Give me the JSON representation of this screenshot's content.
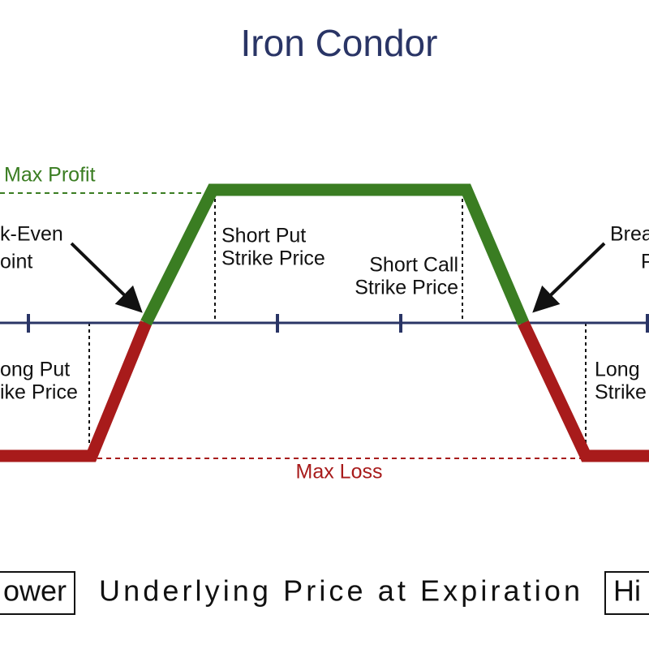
{
  "title": "Iron Condor",
  "max_profit": "Max Profit",
  "max_loss": "Max Loss",
  "left_break_even": [
    "k-Even",
    "oint"
  ],
  "right_break_even": [
    "Brea",
    "P"
  ],
  "short_put": [
    "Short Put",
    "Strike Price"
  ],
  "short_call": [
    "Short Call",
    "Strike Price"
  ],
  "long_put": [
    "ong Put",
    "ike Price"
  ],
  "long_call": [
    "Long",
    "Strike"
  ],
  "x_axis": {
    "low": "ower",
    "label": "Underlying Price at Expiration",
    "high": "Hi"
  }
}
